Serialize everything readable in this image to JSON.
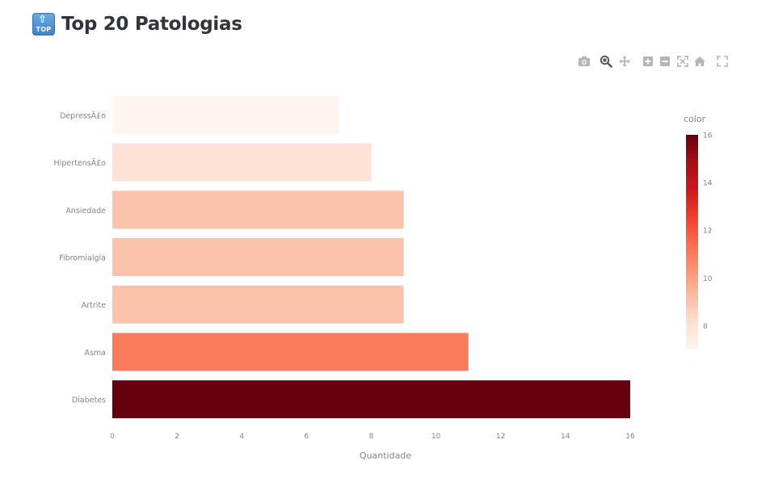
{
  "header": {
    "icon_text": "TOP",
    "title": "Top 20 Patologias"
  },
  "modebar": [
    {
      "name": "camera-icon",
      "active": false
    },
    {
      "name": "zoom-icon",
      "active": true
    },
    {
      "name": "pan-icon",
      "active": false
    },
    {
      "name": "zoom-in-icon",
      "active": false
    },
    {
      "name": "zoom-out-icon",
      "active": false
    },
    {
      "name": "autoscale-icon",
      "active": false
    },
    {
      "name": "home-icon",
      "active": false
    },
    {
      "name": "fullscreen-icon",
      "active": false
    }
  ],
  "chart_data": {
    "type": "bar",
    "orientation": "horizontal",
    "categories": [
      "DepressÃ£o",
      "HipertensÃ£o",
      "Ansiedade",
      "Fibromialgia",
      "Artrite",
      "Asma",
      "Diabetes"
    ],
    "values": [
      7,
      8,
      9,
      9,
      9,
      11,
      16
    ],
    "xlabel": "Quantidade",
    "ylabel": "",
    "xlim": [
      0,
      16
    ],
    "xticks": [
      "0",
      "2",
      "4",
      "6",
      "8",
      "10",
      "12",
      "14",
      "16"
    ],
    "grid": false,
    "colorbar": {
      "title": "color",
      "range": [
        7,
        16
      ],
      "ticks": [
        "8",
        "10",
        "12",
        "14",
        "16"
      ],
      "colors": [
        "#fff5f0",
        "#fee0d2",
        "#fcbba1",
        "#fc9272",
        "#fb6a4a",
        "#ef3b2c",
        "#cb181d",
        "#a50f15",
        "#67000d"
      ]
    }
  }
}
